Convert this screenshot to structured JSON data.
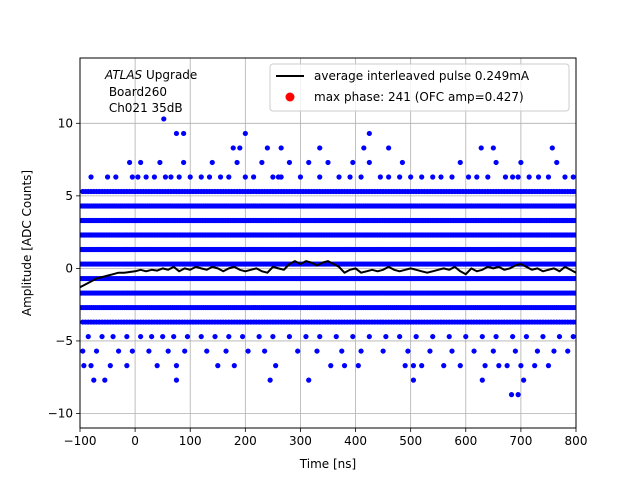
{
  "chart_data": {
    "type": "scatter",
    "title": "",
    "xlabel": "Time [ns]",
    "ylabel": "Amplitude [ADC Counts]",
    "xlim": [
      -100,
      800
    ],
    "ylim": [
      -11,
      14.5
    ],
    "x_ticks": [
      "-100",
      "0",
      "100",
      "200",
      "300",
      "400",
      "500",
      "600",
      "700",
      "800"
    ],
    "y_ticks": [
      "-10",
      "-5",
      "0",
      "5",
      "10"
    ],
    "grid": true,
    "legend_position": "top-right",
    "annotation": {
      "italic": "ATLAS",
      "rest": " Upgrade",
      "line2": " Board260",
      "line3": " Ch021 35dB"
    },
    "legend": [
      {
        "label": "average interleaved pulse 0.249mA",
        "marker": "line",
        "color": "#000000"
      },
      {
        "label": "max phase: 241 (OFC amp=0.427)",
        "marker": "dot",
        "color": "#ff0000"
      }
    ],
    "series": [
      {
        "name": "average interleaved pulse 0.249mA",
        "kind": "line",
        "color": "#000000",
        "x": [
          -100,
          -90,
          -80,
          -70,
          -60,
          -50,
          -40,
          -30,
          -20,
          -10,
          0,
          10,
          20,
          30,
          40,
          50,
          60,
          70,
          80,
          90,
          100,
          110,
          120,
          130,
          140,
          150,
          160,
          170,
          180,
          190,
          200,
          210,
          220,
          230,
          240,
          250,
          260,
          270,
          280,
          290,
          300,
          310,
          320,
          330,
          340,
          350,
          360,
          370,
          380,
          390,
          400,
          410,
          420,
          430,
          440,
          450,
          460,
          470,
          480,
          490,
          500,
          510,
          520,
          530,
          540,
          550,
          560,
          570,
          580,
          590,
          600,
          610,
          620,
          630,
          640,
          650,
          660,
          670,
          680,
          690,
          700,
          710,
          720,
          730,
          740,
          750,
          760,
          770,
          780,
          790,
          800
        ],
        "y": [
          -1.3,
          -1.1,
          -0.9,
          -0.7,
          -0.6,
          -0.5,
          -0.4,
          -0.3,
          -0.3,
          -0.25,
          -0.2,
          -0.1,
          -0.2,
          -0.1,
          -0.15,
          0.0,
          -0.1,
          0.1,
          -0.2,
          0.0,
          -0.1,
          0.1,
          0.0,
          -0.1,
          0.1,
          0.0,
          -0.2,
          0.0,
          0.1,
          -0.1,
          -0.2,
          -0.1,
          0.0,
          -0.2,
          -0.3,
          0.1,
          0.0,
          -0.1,
          0.3,
          0.5,
          0.3,
          0.5,
          0.4,
          0.2,
          0.4,
          0.5,
          0.3,
          0.1,
          -0.3,
          -0.1,
          0.0,
          -0.3,
          -0.2,
          -0.1,
          -0.2,
          -0.1,
          0.1,
          -0.1,
          -0.2,
          -0.1,
          0.0,
          -0.1,
          -0.2,
          -0.3,
          -0.2,
          -0.1,
          0.0,
          -0.1,
          0.1,
          -0.2,
          -0.4,
          0.0,
          -0.2,
          -0.1,
          0.1,
          0.0,
          0.1,
          -0.1,
          0.0,
          0.2,
          0.3,
          0.1,
          -0.1,
          0.0,
          -0.2,
          -0.1,
          0.0,
          -0.2,
          0.1,
          -0.1,
          -0.3
        ]
      },
      {
        "name": "samples",
        "kind": "scatter",
        "color": "#0000ff",
        "levels": [
          {
            "y": 4.3,
            "x_start": -100,
            "x_end": 800,
            "step": 3.5
          },
          {
            "y": 3.3,
            "x_start": -100,
            "x_end": 800,
            "step": 3
          },
          {
            "y": 2.3,
            "x_start": -100,
            "x_end": 800,
            "step": 3
          },
          {
            "y": 1.3,
            "x_start": -100,
            "x_end": 800,
            "step": 3
          },
          {
            "y": 0.3,
            "x_start": -100,
            "x_end": 800,
            "step": 3
          },
          {
            "y": -0.7,
            "x_start": -100,
            "x_end": 800,
            "step": 3
          },
          {
            "y": -1.7,
            "x_start": -100,
            "x_end": 800,
            "step": 3
          },
          {
            "y": -2.7,
            "x_start": -100,
            "x_end": 800,
            "step": 3.5
          },
          {
            "y": 5.3,
            "x_start": -95,
            "x_end": 800,
            "step": 5
          },
          {
            "y": -3.7,
            "x_start": -95,
            "x_end": 800,
            "step": 5
          }
        ],
        "points": [
          [
            -80,
            6.3
          ],
          [
            -50,
            6.3
          ],
          [
            -35,
            6.3
          ],
          [
            -10,
            7.3
          ],
          [
            5,
            6.3
          ],
          [
            20,
            6.3
          ],
          [
            35,
            6.3
          ],
          [
            45,
            7.3
          ],
          [
            55,
            6.3
          ],
          [
            65,
            6.3
          ],
          [
            80,
            6.3
          ],
          [
            88,
            7.3
          ],
          [
            100,
            6.3
          ],
          [
            120,
            6.3
          ],
          [
            140,
            7.3
          ],
          [
            155,
            6.3
          ],
          [
            170,
            6.3
          ],
          [
            185,
            7.3
          ],
          [
            200,
            6.3
          ],
          [
            215,
            6.3
          ],
          [
            230,
            7.3
          ],
          [
            250,
            6.3
          ],
          [
            265,
            6.3
          ],
          [
            280,
            7.3
          ],
          [
            300,
            6.3
          ],
          [
            315,
            7.3
          ],
          [
            335,
            6.3
          ],
          [
            350,
            7.3
          ],
          [
            370,
            6.3
          ],
          [
            390,
            6.3
          ],
          [
            410,
            6.3
          ],
          [
            425,
            7.3
          ],
          [
            445,
            6.3
          ],
          [
            460,
            6.3
          ],
          [
            480,
            6.3
          ],
          [
            500,
            6.3
          ],
          [
            520,
            6.3
          ],
          [
            540,
            6.3
          ],
          [
            555,
            6.3
          ],
          [
            575,
            6.3
          ],
          [
            590,
            7.3
          ],
          [
            605,
            6.3
          ],
          [
            620,
            6.3
          ],
          [
            640,
            6.3
          ],
          [
            655,
            7.3
          ],
          [
            672,
            6.3
          ],
          [
            685,
            6.3
          ],
          [
            700,
            7.3
          ],
          [
            715,
            6.3
          ],
          [
            732,
            6.3
          ],
          [
            750,
            6.3
          ],
          [
            765,
            7.3
          ],
          [
            780,
            6.3
          ],
          [
            795,
            6.3
          ],
          [
            -5,
            6.3
          ],
          [
            10,
            7.3
          ],
          [
            135,
            6.3
          ],
          [
            260,
            6.3
          ],
          [
            395,
            7.3
          ],
          [
            485,
            7.3
          ],
          [
            695,
            6.3
          ],
          [
            52,
            10.3
          ],
          [
            75,
            9.3
          ],
          [
            88,
            9.3
          ],
          [
            178,
            8.3
          ],
          [
            190,
            8.3
          ],
          [
            200,
            9.3
          ],
          [
            240,
            8.3
          ],
          [
            265,
            8.3
          ],
          [
            335,
            8.3
          ],
          [
            415,
            8.3
          ],
          [
            425,
            9.3
          ],
          [
            460,
            8.3
          ],
          [
            628,
            8.3
          ],
          [
            650,
            8.3
          ],
          [
            757,
            8.3
          ],
          [
            -85,
            -4.7
          ],
          [
            -60,
            -4.7
          ],
          [
            -40,
            -4.7
          ],
          [
            -15,
            -4.7
          ],
          [
            10,
            -4.7
          ],
          [
            30,
            -4.7
          ],
          [
            50,
            -4.7
          ],
          [
            70,
            -4.7
          ],
          [
            95,
            -4.7
          ],
          [
            120,
            -4.7
          ],
          [
            145,
            -4.7
          ],
          [
            170,
            -4.7
          ],
          [
            195,
            -4.7
          ],
          [
            225,
            -4.7
          ],
          [
            250,
            -4.7
          ],
          [
            280,
            -4.7
          ],
          [
            310,
            -4.7
          ],
          [
            335,
            -4.7
          ],
          [
            365,
            -4.7
          ],
          [
            395,
            -4.7
          ],
          [
            425,
            -4.7
          ],
          [
            455,
            -4.7
          ],
          [
            480,
            -4.7
          ],
          [
            510,
            -4.7
          ],
          [
            540,
            -4.7
          ],
          [
            570,
            -4.7
          ],
          [
            600,
            -4.7
          ],
          [
            630,
            -4.7
          ],
          [
            655,
            -4.7
          ],
          [
            685,
            -4.7
          ],
          [
            710,
            -4.7
          ],
          [
            740,
            -4.7
          ],
          [
            770,
            -4.7
          ],
          [
            795,
            -4.7
          ],
          [
            -95,
            -5.7
          ],
          [
            -70,
            -5.7
          ],
          [
            -30,
            -5.7
          ],
          [
            -5,
            -5.7
          ],
          [
            25,
            -5.7
          ],
          [
            60,
            -5.7
          ],
          [
            90,
            -5.7
          ],
          [
            130,
            -5.7
          ],
          [
            165,
            -5.7
          ],
          [
            205,
            -5.7
          ],
          [
            235,
            -5.7
          ],
          [
            295,
            -5.7
          ],
          [
            330,
            -5.7
          ],
          [
            375,
            -5.7
          ],
          [
            410,
            -5.7
          ],
          [
            450,
            -5.7
          ],
          [
            495,
            -5.7
          ],
          [
            535,
            -5.7
          ],
          [
            575,
            -5.7
          ],
          [
            615,
            -5.7
          ],
          [
            650,
            -5.7
          ],
          [
            690,
            -5.7
          ],
          [
            730,
            -5.7
          ],
          [
            760,
            -5.7
          ],
          [
            785,
            -5.7
          ],
          [
            -93,
            -6.7
          ],
          [
            -80,
            -6.7
          ],
          [
            -45,
            -6.7
          ],
          [
            -15,
            -6.7
          ],
          [
            40,
            -6.7
          ],
          [
            75,
            -6.7
          ],
          [
            150,
            -6.7
          ],
          [
            180,
            -6.7
          ],
          [
            255,
            -6.7
          ],
          [
            355,
            -6.7
          ],
          [
            380,
            -6.7
          ],
          [
            405,
            -6.7
          ],
          [
            490,
            -6.7
          ],
          [
            505,
            -6.7
          ],
          [
            520,
            -6.7
          ],
          [
            560,
            -6.7
          ],
          [
            590,
            -6.7
          ],
          [
            635,
            -6.7
          ],
          [
            660,
            -6.7
          ],
          [
            675,
            -6.7
          ],
          [
            700,
            -6.7
          ],
          [
            725,
            -6.7
          ],
          [
            750,
            -6.7
          ],
          [
            -75,
            -7.7
          ],
          [
            -55,
            -7.7
          ],
          [
            75,
            -7.7
          ],
          [
            245,
            -7.7
          ],
          [
            315,
            -7.7
          ],
          [
            505,
            -7.7
          ],
          [
            630,
            -7.7
          ],
          [
            705,
            -7.7
          ],
          [
            683,
            -8.7
          ],
          [
            695,
            -8.7
          ]
        ]
      },
      {
        "name": "max phase: 241 (OFC amp=0.427)",
        "kind": "scatter",
        "color": "#ff0000",
        "points": []
      }
    ]
  }
}
